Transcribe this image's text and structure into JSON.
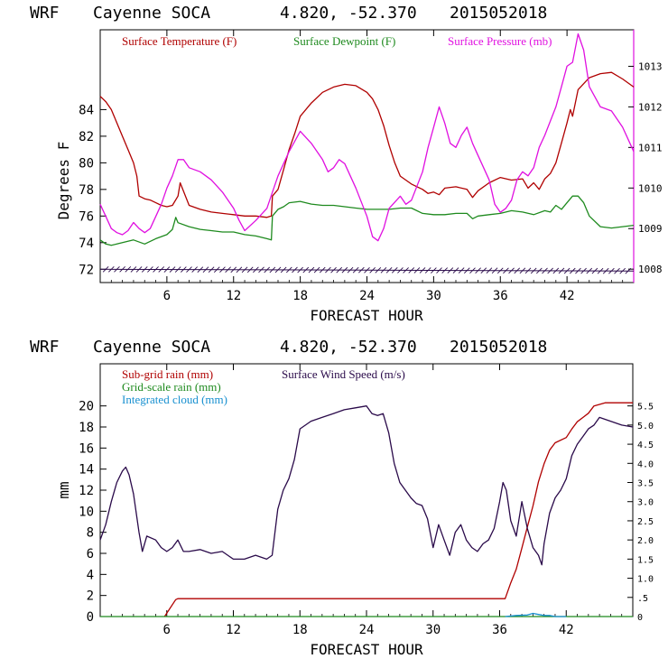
{
  "colors": {
    "temperature": "#b00000",
    "dewpoint": "#1e8a1e",
    "pressure": "#e010e0",
    "subgrid_rain": "#b00000",
    "grid_rain": "#1e8a1e",
    "cloud": "#1890d0",
    "wind": "#2a0a4a",
    "axis": "#000000"
  },
  "chart_data": [
    {
      "type": "line",
      "header": {
        "model": "WRF",
        "location": "Cayenne SOCA",
        "coords": "4.820, -52.370",
        "run": "2015052018"
      },
      "xlabel": "FORECAST HOUR",
      "ylabel": "Degrees F",
      "xlim": [
        0,
        48
      ],
      "xticks": [
        6,
        12,
        18,
        24,
        30,
        36,
        42
      ],
      "ylim": [
        71,
        90
      ],
      "yticks": [
        72,
        74,
        76,
        78,
        80,
        82,
        84
      ],
      "y2lim": [
        1007.67,
        1013.9
      ],
      "y2ticks": [
        1008,
        1009,
        1010,
        1011,
        1012,
        1013
      ],
      "legend_placement": "top",
      "series": [
        {
          "name": "Surface Temperature (F)",
          "axis": "left",
          "x": [
            0,
            0.5,
            1,
            1.5,
            2,
            2.5,
            3,
            3.3,
            3.5,
            4,
            4.5,
            5,
            5.5,
            6,
            6.5,
            7,
            7.2,
            8,
            9,
            10,
            11,
            12,
            13,
            14,
            15,
            15.4,
            15.5,
            16,
            16.5,
            17,
            17.5,
            18,
            19,
            20,
            21,
            22,
            23,
            24,
            24.5,
            25,
            25.5,
            26,
            26.5,
            27,
            28,
            29,
            29.5,
            30,
            30.5,
            31,
            32,
            33,
            33.5,
            34,
            35,
            36,
            37,
            38,
            38.5,
            39,
            39.5,
            40,
            40.5,
            41,
            41.5,
            42,
            42.3,
            42.5,
            43,
            44,
            45,
            46,
            47,
            48
          ],
          "values": [
            85,
            84.6,
            84,
            83,
            82,
            81,
            80,
            79,
            77.5,
            77.3,
            77.2,
            77,
            76.8,
            76.7,
            76.8,
            77.5,
            78.5,
            76.8,
            76.5,
            76.3,
            76.2,
            76.1,
            76,
            76,
            75.9,
            76,
            77.5,
            78,
            79.5,
            81,
            82.2,
            83.5,
            84.5,
            85.3,
            85.7,
            85.9,
            85.8,
            85.3,
            84.8,
            84,
            82.8,
            81.3,
            80,
            79,
            78.4,
            78,
            77.7,
            77.8,
            77.6,
            78.1,
            78.2,
            78,
            77.4,
            77.9,
            78.5,
            78.9,
            78.7,
            78.8,
            78.1,
            78.5,
            78,
            78.8,
            79.2,
            80,
            81.5,
            83,
            84,
            83.5,
            85.5,
            86.4,
            86.7,
            86.8,
            86.3,
            85.7
          ]
        },
        {
          "name": "Surface Dewpoint (F)",
          "axis": "left",
          "x": [
            0,
            0.5,
            1,
            1.5,
            2,
            3,
            4,
            5,
            6,
            6.5,
            6.8,
            7,
            8,
            9,
            10,
            11,
            12,
            13,
            14,
            15,
            15.4,
            15.5,
            16,
            16.5,
            17,
            18,
            19,
            20,
            21,
            22,
            23,
            24,
            25,
            26,
            27,
            28,
            29,
            30,
            31,
            32,
            33,
            33.5,
            34,
            35,
            36,
            37,
            38,
            39,
            40,
            40.5,
            41,
            41.5,
            42,
            42.5,
            43,
            43.5,
            44,
            45,
            46,
            47,
            48
          ],
          "values": [
            74.2,
            73.9,
            73.8,
            73.9,
            74,
            74.2,
            73.9,
            74.3,
            74.6,
            75,
            75.9,
            75.5,
            75.2,
            75,
            74.9,
            74.8,
            74.8,
            74.6,
            74.5,
            74.3,
            74.2,
            76,
            76.5,
            76.7,
            77,
            77.1,
            76.9,
            76.8,
            76.8,
            76.7,
            76.6,
            76.5,
            76.5,
            76.5,
            76.6,
            76.6,
            76.2,
            76.1,
            76.1,
            76.2,
            76.2,
            75.8,
            76,
            76.1,
            76.2,
            76.4,
            76.3,
            76.1,
            76.4,
            76.3,
            76.8,
            76.5,
            77,
            77.5,
            77.5,
            77,
            76,
            75.2,
            75.1,
            75.2,
            75.3
          ]
        },
        {
          "name": "Surface Pressure (mb)",
          "axis": "right",
          "x": [
            0,
            0.5,
            1,
            1.5,
            2,
            2.5,
            3,
            3.5,
            4,
            4.5,
            5,
            5.5,
            6,
            6.5,
            7,
            7.5,
            8,
            9,
            10,
            11,
            12,
            12.5,
            13,
            14,
            15,
            15.5,
            16,
            17,
            18,
            19,
            20,
            20.5,
            21,
            21.5,
            22,
            23,
            24,
            24.5,
            25,
            25.5,
            26,
            27,
            27.5,
            28,
            29,
            29.5,
            30,
            30.5,
            31,
            31.5,
            32,
            32.5,
            33,
            33.5,
            34,
            35,
            35.5,
            36,
            36.5,
            37,
            37.5,
            38,
            38.5,
            39,
            39.5,
            40,
            41,
            41.5,
            42,
            42.5,
            43,
            43.5,
            44,
            45,
            46,
            47,
            48
          ],
          "values": [
            1009.6,
            1009.3,
            1009,
            1008.9,
            1008.85,
            1008.95,
            1009.15,
            1009.0,
            1008.9,
            1009.0,
            1009.3,
            1009.6,
            1010.0,
            1010.3,
            1010.7,
            1010.7,
            1010.5,
            1010.4,
            1010.2,
            1009.9,
            1009.5,
            1009.2,
            1008.95,
            1009.2,
            1009.5,
            1009.9,
            1010.3,
            1010.9,
            1011.4,
            1011.1,
            1010.7,
            1010.4,
            1010.5,
            1010.7,
            1010.6,
            1010.0,
            1009.3,
            1008.8,
            1008.7,
            1009.0,
            1009.5,
            1009.8,
            1009.6,
            1009.7,
            1010.4,
            1011.0,
            1011.5,
            1012.0,
            1011.6,
            1011.1,
            1011.0,
            1011.3,
            1011.5,
            1011.1,
            1010.8,
            1010.2,
            1009.6,
            1009.4,
            1009.5,
            1009.7,
            1010.2,
            1010.4,
            1010.3,
            1010.5,
            1011.0,
            1011.3,
            1012.0,
            1012.5,
            1013.0,
            1013.1,
            1013.8,
            1013.4,
            1012.5,
            1012.0,
            1011.9,
            1011.5,
            1010.9
          ]
        }
      ]
    },
    {
      "type": "line",
      "header": {
        "model": "WRF",
        "location": "Cayenne SOCA",
        "coords": "4.820, -52.370",
        "run": "2015052018"
      },
      "xlabel": "FORECAST HOUR",
      "ylabel": "mm",
      "xlim": [
        0,
        48
      ],
      "xticks": [
        6,
        12,
        18,
        24,
        30,
        36,
        42
      ],
      "ylim": [
        0,
        24
      ],
      "yticks": [
        0,
        2,
        4,
        6,
        8,
        10,
        12,
        14,
        16,
        18,
        20
      ],
      "y2lim": [
        0,
        6.6
      ],
      "y2ticks": [
        0,
        0.5,
        1.0,
        1.5,
        2.0,
        2.5,
        3.0,
        3.5,
        4.0,
        4.5,
        5.0,
        5.5
      ],
      "y2ticklabels": [
        "0",
        ".5",
        "1.0",
        "1.5",
        "2.0",
        "2.5",
        "3.0",
        "3.5",
        "4.0",
        "4.5",
        "5.0",
        "5.5"
      ],
      "legend_placement": "top-left",
      "series": [
        {
          "name": "Sub-grid rain (mm)",
          "axis": "left",
          "x": [
            5.8,
            6.8,
            7.0,
            36.5,
            37.0,
            37.5,
            38.0,
            38.5,
            39.0,
            39.5,
            40.0,
            40.5,
            41.0,
            42.0,
            42.5,
            43.0,
            43.5,
            44.0,
            44.5,
            45.5,
            46.0,
            48.0
          ],
          "values": [
            0,
            1.6,
            1.7,
            1.7,
            3.2,
            4.5,
            6.5,
            8.5,
            10.5,
            12.8,
            14.5,
            15.8,
            16.5,
            17.0,
            17.8,
            18.5,
            18.9,
            19.3,
            20.0,
            20.3,
            20.3,
            20.3
          ]
        },
        {
          "name": "Grid-scale rain (mm)",
          "axis": "left",
          "x": [
            0,
            48
          ],
          "values": [
            0,
            0
          ]
        },
        {
          "name": "Integrated cloud (mm)",
          "axis": "left",
          "x": [
            36.5,
            37.5,
            38.5,
            39.0,
            39.5,
            40.0,
            40.5,
            41.0,
            42.0
          ],
          "values": [
            0,
            0.1,
            0.15,
            0.3,
            0.2,
            0.1,
            0.1,
            0,
            0
          ]
        },
        {
          "name": "Surface Wind Speed (m/s)",
          "axis": "right",
          "x": [
            0,
            0.5,
            1,
            1.5,
            2,
            2.3,
            2.6,
            3,
            3.5,
            3.8,
            4.2,
            5,
            5.5,
            6,
            6.5,
            7,
            7.5,
            8,
            9,
            10,
            11,
            12,
            13,
            14,
            15,
            15.5,
            16,
            16.5,
            17,
            17.5,
            18,
            18.5,
            19,
            20,
            21,
            22,
            23,
            24,
            24.5,
            25,
            25.5,
            26,
            26.5,
            27,
            28,
            28.5,
            29,
            29.5,
            30,
            30.5,
            31,
            31.5,
            32,
            32.5,
            33,
            33.5,
            34,
            34.5,
            35,
            35.5,
            36,
            36.3,
            36.6,
            37,
            37.5,
            38,
            38.5,
            39,
            39.5,
            39.8,
            40,
            40.5,
            41,
            41.5,
            42,
            42.5,
            43,
            43.5,
            44,
            44.5,
            45,
            46,
            47,
            48
          ],
          "values": [
            2.0,
            2.4,
            3.0,
            3.5,
            3.8,
            3.9,
            3.7,
            3.2,
            2.2,
            1.7,
            2.1,
            2.0,
            1.8,
            1.7,
            1.8,
            2.0,
            1.7,
            1.7,
            1.75,
            1.65,
            1.7,
            1.5,
            1.5,
            1.6,
            1.5,
            1.6,
            2.8,
            3.3,
            3.6,
            4.1,
            4.9,
            5.0,
            5.1,
            5.2,
            5.3,
            5.4,
            5.45,
            5.5,
            5.3,
            5.25,
            5.3,
            4.8,
            4.0,
            3.5,
            3.1,
            2.95,
            2.9,
            2.55,
            1.8,
            2.4,
            2.0,
            1.6,
            2.2,
            2.4,
            2.0,
            1.8,
            1.7,
            1.9,
            2.0,
            2.3,
            3.0,
            3.5,
            3.3,
            2.5,
            2.1,
            3.0,
            2.3,
            1.8,
            1.6,
            1.35,
            1.9,
            2.7,
            3.1,
            3.3,
            3.6,
            4.2,
            4.5,
            4.7,
            4.9,
            5.0,
            5.2,
            5.1,
            5.0,
            4.95
          ]
        }
      ]
    }
  ]
}
